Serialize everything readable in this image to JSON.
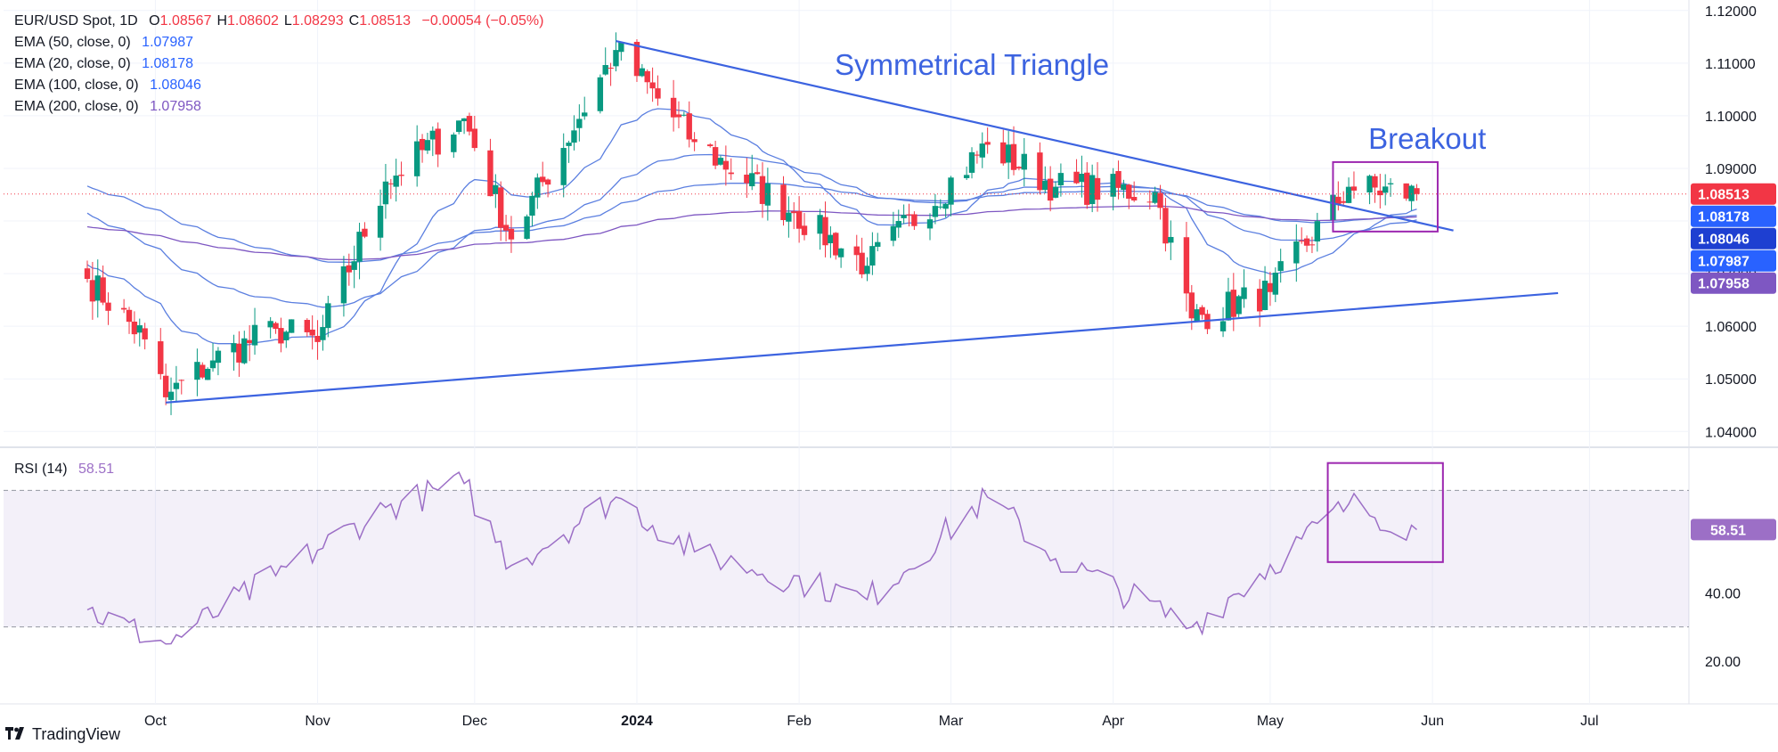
{
  "header": {
    "symbol": "EUR/USD Spot, 1D",
    "ohlc": [
      {
        "k": "O",
        "v": "1.08567"
      },
      {
        "k": "H",
        "v": "1.08602"
      },
      {
        "k": "L",
        "v": "1.08293"
      },
      {
        "k": "C",
        "v": "1.08513"
      }
    ],
    "change": "−0.00054 (−0.05%)"
  },
  "indicators": [
    {
      "label": "EMA (50, close, 0)",
      "value": "1.07987",
      "color": "#2962ff"
    },
    {
      "label": "EMA (20, close, 0)",
      "value": "1.08178",
      "color": "#2962ff"
    },
    {
      "label": "EMA (100, close, 0)",
      "value": "1.08046",
      "color": "#2962ff"
    },
    {
      "label": "EMA (200, close, 0)",
      "value": "1.07958",
      "color": "#7e57c2"
    }
  ],
  "rsi": {
    "label": "RSI (14)",
    "value": "58.51",
    "color": "#9c6fc6"
  },
  "annotations": {
    "triangle": "Symmetrical Triangle",
    "breakout": "Breakout"
  },
  "brand": {
    "name": "TradingView"
  },
  "colors": {
    "up": "#089981",
    "down": "#f23645",
    "line": "#3c63e0",
    "purple": "#9c27b0",
    "ema200": "#7e57c2",
    "ema": "#5b7fe0",
    "rsi": "#9c6fc6"
  },
  "chart_data": [
    {
      "type": "candlestick",
      "title": "EUR/USD Spot, 1D",
      "ylim": [
        1.037,
        1.122
      ],
      "y_ticks": [
        "1.12000",
        "1.11000",
        "1.10000",
        "1.09000",
        "1.08000",
        "1.07000",
        "1.06000",
        "1.05000",
        "1.04000"
      ],
      "x_ticks": [
        "Oct",
        "Nov",
        "Dec",
        "2024",
        "Feb",
        "Mar",
        "Apr",
        "May",
        "Jun",
        "Jul"
      ],
      "price_labels": [
        {
          "text": "1.08513",
          "value": 1.08513,
          "color": "#f23645"
        },
        {
          "text": "1.08178",
          "value": 1.08178,
          "color": "#2962ff"
        },
        {
          "text": "1.08046",
          "value": 1.08046,
          "color": "#1e3fd1"
        },
        {
          "text": "1.07987",
          "value": 1.07987,
          "color": "#2962ff"
        },
        {
          "text": "1.07958",
          "value": 1.07958,
          "color": "#7e57c2"
        }
      ],
      "key_closes": [
        [
          "2023-09-18",
          1.069
        ],
        [
          "2023-09-29",
          1.0575
        ],
        [
          "2023-10-03",
          1.0465
        ],
        [
          "2023-10-12",
          1.0535
        ],
        [
          "2023-10-24",
          1.0595
        ],
        [
          "2023-11-01",
          1.057
        ],
        [
          "2023-11-14",
          1.0875
        ],
        [
          "2023-11-29",
          1.0995
        ],
        [
          "2023-12-08",
          1.0765
        ],
        [
          "2023-12-28",
          1.1125
        ],
        [
          "2024-01-12",
          1.095
        ],
        [
          "2024-01-31",
          1.0815
        ],
        [
          "2024-02-14",
          1.0715
        ],
        [
          "2024-03-08",
          1.0945
        ],
        [
          "2024-03-21",
          1.0865
        ],
        [
          "2024-04-09",
          1.0855
        ],
        [
          "2024-04-16",
          1.0615
        ],
        [
          "2024-05-01",
          1.0665
        ],
        [
          "2024-05-16",
          1.0865
        ],
        [
          "2024-05-29",
          1.08513
        ]
      ],
      "series": [
        {
          "name": "EMA (20, close, 0)",
          "value": 1.08178
        },
        {
          "name": "EMA (50, close, 0)",
          "value": 1.07987
        },
        {
          "name": "EMA (100, close, 0)",
          "value": 1.08046
        },
        {
          "name": "EMA (200, close, 0)",
          "value": 1.07958
        }
      ],
      "trendlines": [
        {
          "from": [
            "2023-12-28",
            1.1142
          ],
          "to": [
            "2024-06-05",
            1.0782
          ]
        },
        {
          "from": [
            "2023-10-03",
            1.0455
          ],
          "to": [
            "2024-06-25",
            1.0663
          ]
        }
      ]
    },
    {
      "type": "line",
      "name": "RSI (14)",
      "ylim": [
        20,
        80
      ],
      "y_ticks": [
        "40.00",
        "20.00"
      ],
      "levels": [
        70,
        30
      ],
      "last": 58.51,
      "key_values": [
        [
          "2023-09-18",
          35
        ],
        [
          "2023-10-03",
          25
        ],
        [
          "2023-10-24",
          45
        ],
        [
          "2023-11-14",
          65
        ],
        [
          "2023-11-29",
          72
        ],
        [
          "2023-12-08",
          48
        ],
        [
          "2023-12-28",
          68
        ],
        [
          "2024-01-12",
          52
        ],
        [
          "2024-02-14",
          38
        ],
        [
          "2024-03-08",
          68
        ],
        [
          "2024-03-21",
          50
        ],
        [
          "2024-04-16",
          30
        ],
        [
          "2024-05-16",
          66
        ],
        [
          "2024-05-29",
          58.51
        ]
      ]
    }
  ]
}
